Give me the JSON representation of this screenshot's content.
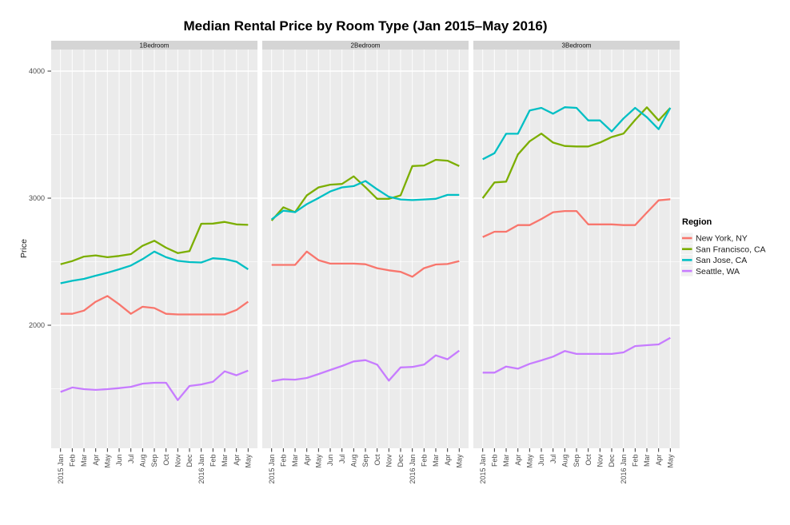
{
  "title": "Median Rental Price by Room Type (Jan 2015–May 2016)",
  "chart_data": {
    "type": "line",
    "title": "Median Rental Price by Room Type (Jan 2015–May 2016)",
    "ylabel": "Price",
    "xlabel": "",
    "legend_title": "Region",
    "legend_position": "right",
    "grid": "on",
    "panel_background": "#EBEBEB",
    "strip_background": "#D5D5D5",
    "gridline_color": "#FFFFFF",
    "axis_text_color": "#4D4D4D",
    "y_ticks": [
      2000,
      3000,
      4000
    ],
    "y_minor_ticks": [
      1500,
      2500,
      3500
    ],
    "ylim": [
      1030,
      4170
    ],
    "x_labels": [
      "2015 Jan",
      "Feb",
      "Mar",
      "Apr",
      "May",
      "Jun",
      "Jul",
      "Aug",
      "Sep",
      "Oct",
      "Nov",
      "Dec",
      "2016 Jan",
      "Feb",
      "Mar",
      "Apr",
      "May"
    ],
    "series_names": [
      "New York, NY",
      "San Francisco, CA",
      "San Jose, CA",
      "Seattle, WA"
    ],
    "series_colors": [
      "#F8766D",
      "#7CAE00",
      "#00BFC4",
      "#C77CFF"
    ],
    "facets": [
      {
        "label": "1Bedroom",
        "series": [
          {
            "name": "New York, NY",
            "color": "#F8766D",
            "values": [
              2090,
              2090,
              2115,
              2185,
              2230,
              2165,
              2090,
              2145,
              2135,
              2090,
              2085,
              2085,
              2085,
              2085,
              2085,
              2120,
              2185
            ]
          },
          {
            "name": "San Francisco, CA",
            "color": "#7CAE00",
            "values": [
              2480,
              2505,
              2540,
              2550,
              2535,
              2545,
              2560,
              2625,
              2665,
              2610,
              2568,
              2583,
              2799,
              2800,
              2813,
              2794,
              2790
            ]
          },
          {
            "name": "San Jose, CA",
            "color": "#00BFC4",
            "values": [
              2330,
              2350,
              2365,
              2390,
              2413,
              2440,
              2470,
              2520,
              2580,
              2535,
              2507,
              2497,
              2494,
              2527,
              2520,
              2500,
              2440
            ]
          },
          {
            "name": "Seattle, WA",
            "color": "#C77CFF",
            "values": [
              1475,
              1510,
              1497,
              1491,
              1497,
              1505,
              1515,
              1540,
              1547,
              1547,
              1411,
              1522,
              1534,
              1555,
              1637,
              1606,
              1643
            ]
          }
        ]
      },
      {
        "label": "2Bedroom",
        "series": [
          {
            "name": "New York, NY",
            "color": "#F8766D",
            "values": [
              2475,
              2475,
              2475,
              2580,
              2512,
              2485,
              2485,
              2485,
              2480,
              2449,
              2432,
              2420,
              2382,
              2449,
              2478,
              2482,
              2505
            ]
          },
          {
            "name": "San Francisco, CA",
            "color": "#7CAE00",
            "values": [
              2823,
              2928,
              2890,
              3022,
              3085,
              3106,
              3112,
              3172,
              3086,
              2995,
              2995,
              3022,
              3253,
              3257,
              3302,
              3295,
              3253
            ]
          },
          {
            "name": "San Jose, CA",
            "color": "#00BFC4",
            "values": [
              2833,
              2902,
              2890,
              2953,
              3001,
              3053,
              3085,
              3095,
              3135,
              3070,
              3011,
              2990,
              2985,
              2990,
              2995,
              3026,
              3026
            ]
          },
          {
            "name": "Seattle, WA",
            "color": "#C77CFF",
            "values": [
              1560,
              1575,
              1572,
              1585,
              1616,
              1648,
              1679,
              1715,
              1725,
              1690,
              1564,
              1668,
              1672,
              1690,
              1763,
              1732,
              1800
            ]
          }
        ]
      },
      {
        "label": "3Bedroom",
        "series": [
          {
            "name": "New York, NY",
            "color": "#F8766D",
            "values": [
              2694,
              2736,
              2736,
              2788,
              2788,
              2836,
              2889,
              2899,
              2899,
              2794,
              2794,
              2794,
              2788,
              2788,
              2887,
              2983,
              2992
            ]
          },
          {
            "name": "San Francisco, CA",
            "color": "#7CAE00",
            "values": [
              3000,
              3124,
              3130,
              3344,
              3448,
              3508,
              3438,
              3411,
              3407,
              3407,
              3438,
              3481,
              3508,
              3616,
              3715,
              3612,
              3711
            ]
          },
          {
            "name": "San Jose, CA",
            "color": "#00BFC4",
            "values": [
              3306,
              3354,
              3507,
              3507,
              3690,
              3711,
              3665,
              3716,
              3711,
              3612,
              3612,
              3525,
              3627,
              3711,
              3637,
              3543,
              3711
            ]
          },
          {
            "name": "Seattle, WA",
            "color": "#C77CFF",
            "values": [
              1627,
              1627,
              1675,
              1658,
              1696,
              1723,
              1753,
              1797,
              1774,
              1774,
              1774,
              1774,
              1786,
              1836,
              1843,
              1849,
              1901
            ]
          }
        ]
      }
    ],
    "legend": {
      "title": "Region",
      "entries": [
        {
          "label": "New York, NY",
          "color": "#F8766D"
        },
        {
          "label": "San Francisco, CA",
          "color": "#7CAE00"
        },
        {
          "label": "San Jose, CA",
          "color": "#00BFC4"
        },
        {
          "label": "Seattle, WA",
          "color": "#C77CFF"
        }
      ]
    }
  }
}
